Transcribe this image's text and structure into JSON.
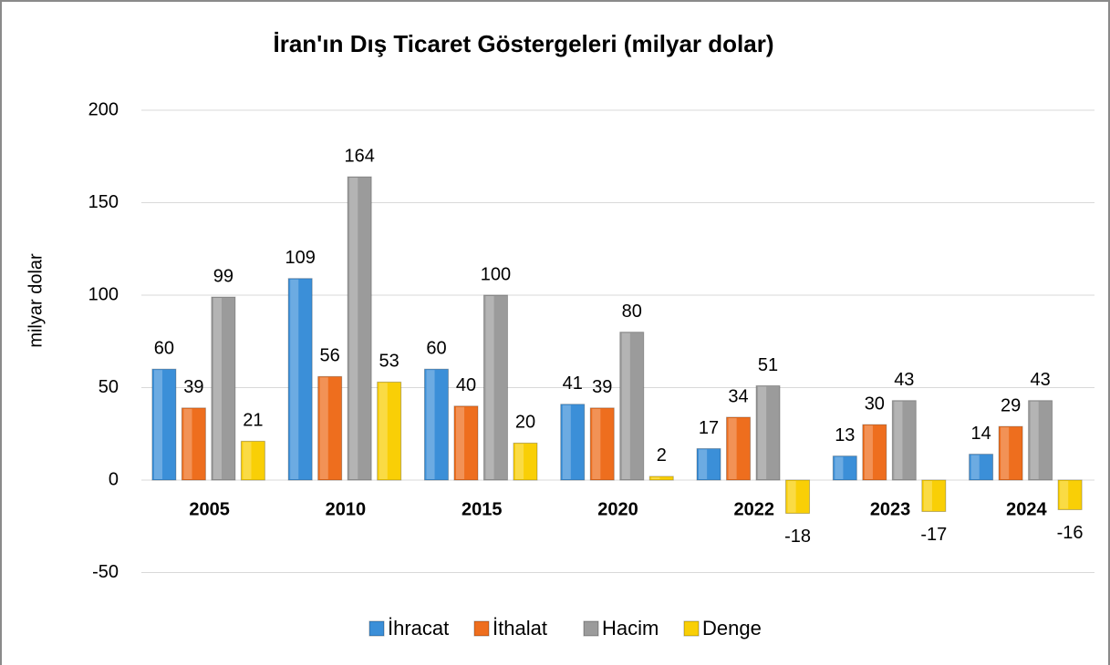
{
  "chart_data": {
    "type": "bar",
    "title": "İran'ın Dış Ticaret Göstergeleri (milyar dolar)",
    "y_label": "milyar dolar",
    "categories": [
      "2005",
      "2010",
      "2015",
      "2020",
      "2022",
      "2023",
      "2024"
    ],
    "series": [
      {
        "name": "İhracat",
        "color": "#3b8fd8",
        "values": [
          60,
          109,
          60,
          41,
          17,
          13,
          14
        ]
      },
      {
        "name": "İthalat",
        "color": "#ee6e1e",
        "values": [
          39,
          56,
          40,
          39,
          34,
          30,
          29
        ]
      },
      {
        "name": "Hacim",
        "color": "#9b9b9b",
        "values": [
          99,
          164,
          100,
          80,
          51,
          43,
          43
        ]
      },
      {
        "name": "Denge",
        "color": "#f9cf06",
        "values": [
          21,
          53,
          20,
          2,
          -18,
          -17,
          -16
        ]
      }
    ],
    "ylim": [
      -50,
      200
    ],
    "yticks": [
      -50,
      0,
      50,
      100,
      150,
      200
    ],
    "grid": true,
    "legend": "bottom"
  }
}
